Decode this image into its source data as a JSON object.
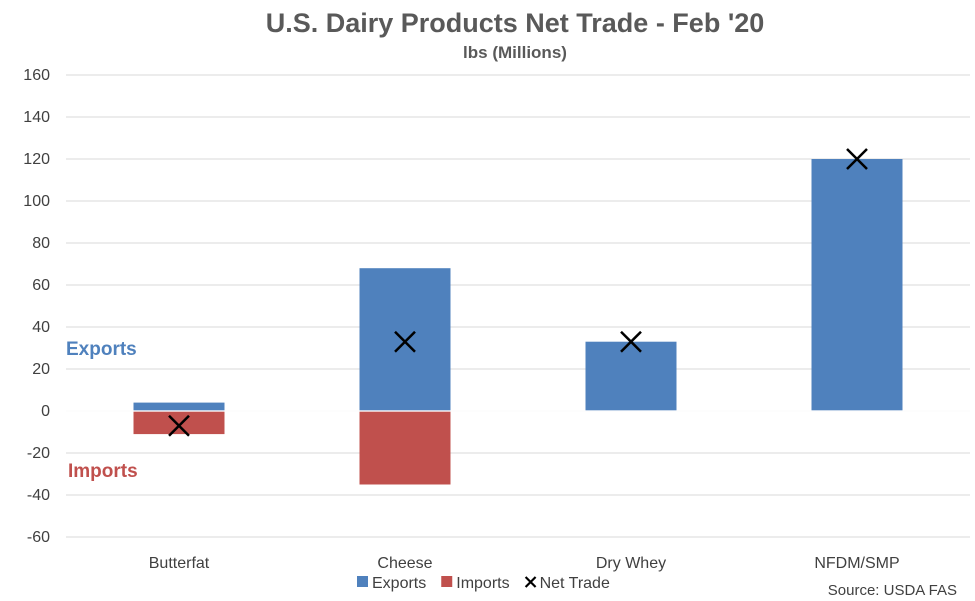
{
  "chart_data": {
    "type": "bar",
    "title": "U.S. Dairy Products Net Trade - Feb '20",
    "subtitle": "lbs (Millions)",
    "categories": [
      "Butterfat",
      "Cheese",
      "Dry Whey",
      "NFDM/SMP"
    ],
    "series": [
      {
        "name": "Exports",
        "values": [
          4,
          68,
          33,
          120
        ],
        "color": "#4F81BD"
      },
      {
        "name": "Imports",
        "values": [
          -11,
          -35,
          0,
          0
        ],
        "color": "#C0504D"
      },
      {
        "name": "Net Trade",
        "values": [
          -7,
          33,
          33,
          120
        ],
        "marker": "x",
        "color": "#000000"
      }
    ],
    "ylim": [
      -60,
      160
    ],
    "yticks": [
      -60,
      -40,
      -20,
      0,
      20,
      40,
      60,
      80,
      100,
      120,
      140,
      160
    ],
    "grid": true,
    "legend": "bottom",
    "annotations": {
      "exports": "Exports",
      "imports": "Imports"
    },
    "source": "Source: USDA FAS"
  }
}
